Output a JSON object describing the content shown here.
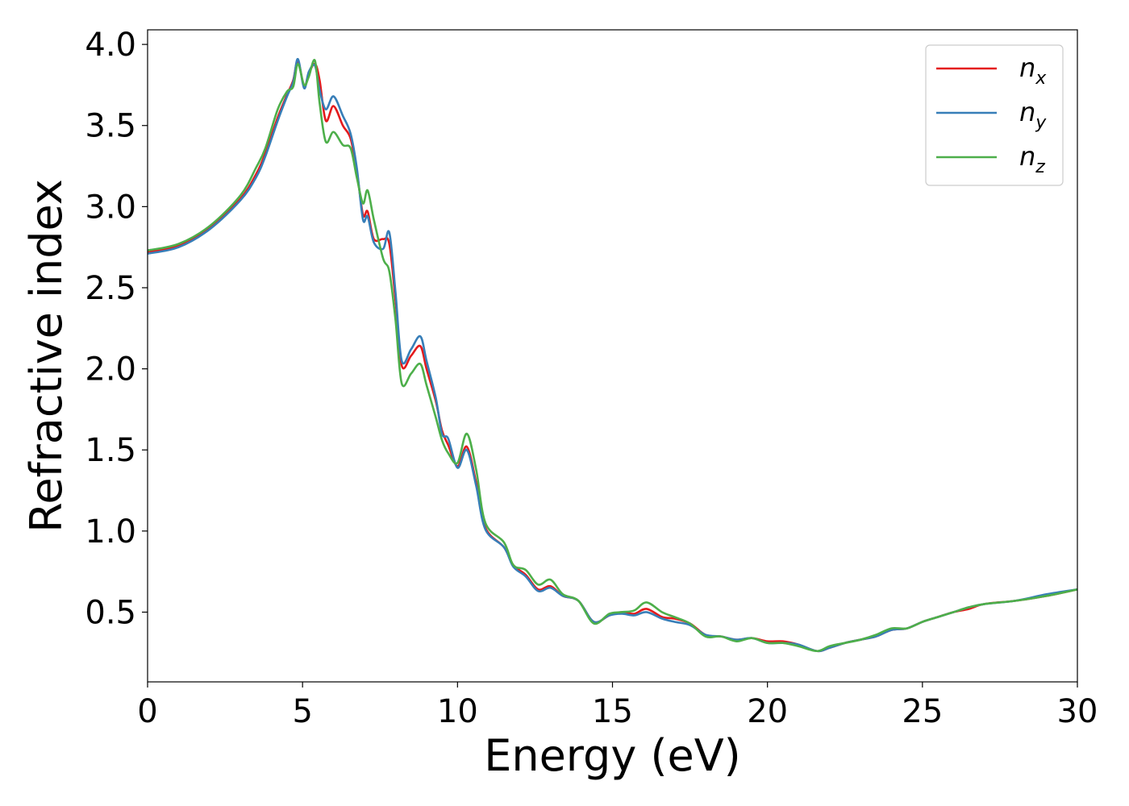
{
  "chart_data": {
    "type": "line",
    "title": "",
    "xlabel": "Energy (eV)",
    "ylabel": "Refractive index",
    "xlim": [
      0,
      30
    ],
    "ylim": [
      0.07,
      4.09
    ],
    "xticks": [
      0,
      5,
      10,
      15,
      20,
      25,
      30
    ],
    "yticks": [
      0.5,
      1.0,
      1.5,
      2.0,
      2.5,
      3.0,
      3.5,
      4.0
    ],
    "xtick_labels": [
      "0",
      "5",
      "10",
      "15",
      "20",
      "25",
      "30"
    ],
    "ytick_labels": [
      "0.5",
      "1.0",
      "1.5",
      "2.0",
      "2.5",
      "3.0",
      "3.5",
      "4.0"
    ],
    "grid": false,
    "legend_position": "top-right",
    "series": [
      {
        "name": "n_x",
        "legend_base": "n",
        "legend_sub": "x",
        "color": "#e41a1c",
        "x": [
          0,
          1,
          2,
          3,
          3.5,
          3.8,
          4.2,
          4.5,
          4.7,
          4.85,
          5.05,
          5.2,
          5.4,
          5.55,
          5.75,
          6.0,
          6.3,
          6.55,
          6.75,
          6.95,
          7.1,
          7.3,
          7.6,
          7.8,
          8.0,
          8.2,
          8.5,
          8.8,
          9.0,
          9.3,
          9.5,
          9.7,
          10.0,
          10.3,
          10.6,
          10.9,
          11.5,
          11.8,
          12.2,
          12.6,
          13.0,
          13.4,
          13.9,
          14.4,
          14.9,
          15.3,
          15.7,
          16.1,
          16.6,
          17.0,
          17.5,
          18.0,
          18.5,
          19.0,
          19.5,
          20.0,
          20.5,
          21.0,
          21.6,
          22.0,
          22.5,
          23.0,
          23.5,
          24.0,
          24.5,
          25.0,
          25.5,
          26.0,
          26.5,
          27.0,
          28.0,
          29.0,
          30.0
        ],
        "y": [
          2.72,
          2.76,
          2.87,
          3.05,
          3.2,
          3.33,
          3.55,
          3.69,
          3.78,
          3.9,
          3.74,
          3.82,
          3.88,
          3.78,
          3.53,
          3.62,
          3.5,
          3.42,
          3.22,
          2.95,
          2.97,
          2.8,
          2.8,
          2.77,
          2.42,
          2.02,
          2.08,
          2.14,
          2.0,
          1.8,
          1.62,
          1.53,
          1.4,
          1.52,
          1.3,
          1.02,
          0.9,
          0.79,
          0.73,
          0.64,
          0.66,
          0.6,
          0.57,
          0.44,
          0.48,
          0.5,
          0.49,
          0.52,
          0.47,
          0.46,
          0.43,
          0.36,
          0.35,
          0.33,
          0.34,
          0.32,
          0.32,
          0.3,
          0.26,
          0.28,
          0.31,
          0.33,
          0.35,
          0.39,
          0.4,
          0.44,
          0.47,
          0.5,
          0.52,
          0.55,
          0.57,
          0.6,
          0.64
        ]
      },
      {
        "name": "n_y",
        "legend_base": "n",
        "legend_sub": "y",
        "color": "#377eb8",
        "x": [
          0,
          1,
          2,
          3,
          3.5,
          3.8,
          4.2,
          4.5,
          4.7,
          4.85,
          5.05,
          5.2,
          5.4,
          5.55,
          5.75,
          6.0,
          6.3,
          6.55,
          6.75,
          6.95,
          7.1,
          7.3,
          7.6,
          7.8,
          8.0,
          8.2,
          8.5,
          8.8,
          9.0,
          9.3,
          9.5,
          9.7,
          10.0,
          10.3,
          10.6,
          10.9,
          11.5,
          11.8,
          12.2,
          12.6,
          13.0,
          13.4,
          13.9,
          14.4,
          14.9,
          15.3,
          15.7,
          16.1,
          16.6,
          17.0,
          17.5,
          18.0,
          18.5,
          19.0,
          19.5,
          20.0,
          20.5,
          21.0,
          21.6,
          22.0,
          22.5,
          23.0,
          23.5,
          24.0,
          24.5,
          25.0,
          25.5,
          26.0,
          26.5,
          27.0,
          28.0,
          29.0,
          30.0
        ],
        "y": [
          2.71,
          2.75,
          2.86,
          3.04,
          3.18,
          3.31,
          3.53,
          3.68,
          3.77,
          3.91,
          3.73,
          3.83,
          3.87,
          3.72,
          3.6,
          3.68,
          3.56,
          3.45,
          3.24,
          2.92,
          2.94,
          2.78,
          2.74,
          2.84,
          2.47,
          2.05,
          2.12,
          2.2,
          2.05,
          1.82,
          1.6,
          1.57,
          1.39,
          1.5,
          1.28,
          1.01,
          0.9,
          0.78,
          0.72,
          0.63,
          0.65,
          0.6,
          0.57,
          0.44,
          0.48,
          0.49,
          0.48,
          0.5,
          0.46,
          0.44,
          0.42,
          0.36,
          0.35,
          0.33,
          0.34,
          0.31,
          0.31,
          0.3,
          0.26,
          0.28,
          0.31,
          0.33,
          0.35,
          0.39,
          0.4,
          0.44,
          0.47,
          0.5,
          0.53,
          0.55,
          0.57,
          0.61,
          0.64
        ]
      },
      {
        "name": "n_z",
        "legend_base": "n",
        "legend_sub": "z",
        "color": "#4daf4a",
        "x": [
          0,
          1,
          2,
          3,
          3.5,
          3.8,
          4.2,
          4.5,
          4.7,
          4.85,
          5.05,
          5.2,
          5.4,
          5.55,
          5.75,
          6.0,
          6.3,
          6.55,
          6.75,
          6.95,
          7.1,
          7.3,
          7.6,
          7.8,
          8.0,
          8.2,
          8.5,
          8.8,
          9.0,
          9.3,
          9.5,
          9.7,
          10.0,
          10.3,
          10.6,
          10.9,
          11.5,
          11.8,
          12.2,
          12.6,
          13.0,
          13.4,
          13.9,
          14.4,
          14.9,
          15.3,
          15.7,
          16.1,
          16.6,
          17.0,
          17.5,
          18.0,
          18.5,
          19.0,
          19.5,
          20.0,
          20.5,
          21.0,
          21.6,
          22.0,
          22.5,
          23.0,
          23.5,
          24.0,
          24.5,
          25.0,
          25.5,
          26.0,
          26.5,
          27.0,
          28.0,
          29.0,
          30.0
        ],
        "y": [
          2.73,
          2.77,
          2.88,
          3.07,
          3.24,
          3.36,
          3.6,
          3.71,
          3.74,
          3.88,
          3.75,
          3.8,
          3.9,
          3.64,
          3.4,
          3.46,
          3.38,
          3.36,
          3.18,
          3.02,
          3.1,
          2.92,
          2.68,
          2.6,
          2.3,
          1.91,
          1.97,
          2.03,
          1.9,
          1.7,
          1.56,
          1.48,
          1.42,
          1.6,
          1.38,
          1.05,
          0.93,
          0.79,
          0.76,
          0.67,
          0.7,
          0.61,
          0.57,
          0.43,
          0.49,
          0.5,
          0.51,
          0.56,
          0.5,
          0.47,
          0.43,
          0.35,
          0.35,
          0.32,
          0.34,
          0.31,
          0.31,
          0.29,
          0.26,
          0.29,
          0.31,
          0.33,
          0.36,
          0.4,
          0.4,
          0.44,
          0.47,
          0.5,
          0.53,
          0.55,
          0.57,
          0.6,
          0.64
        ]
      }
    ]
  }
}
